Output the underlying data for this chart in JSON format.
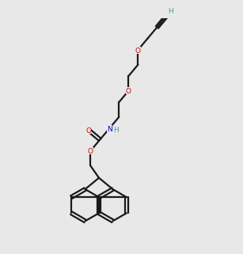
{
  "bg_color": "#e8e8e8",
  "bond_color": "#1a1a1a",
  "o_color": "#cc0000",
  "n_color": "#0000cc",
  "h_color": "#4a9a8a",
  "lw": 1.6,
  "dbgap": 0.07
}
